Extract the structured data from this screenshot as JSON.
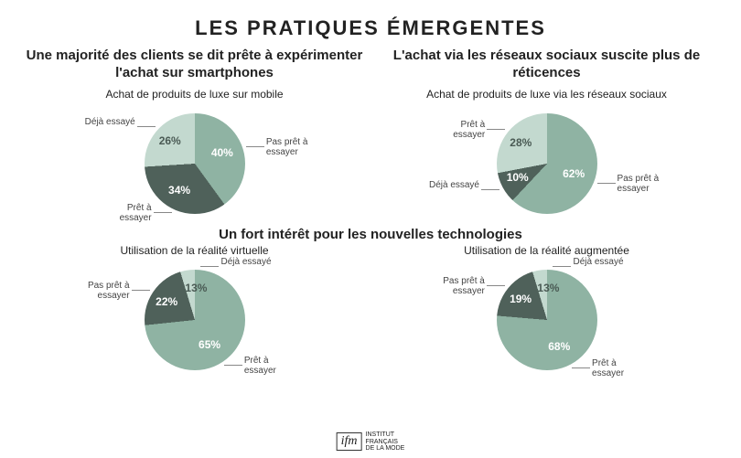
{
  "title": "LES PRATIQUES ÉMERGENTES",
  "section2_heading": "Un fort intérêt pour les nouvelles technologies",
  "logo": {
    "mark": "ifm",
    "line1": "INSTITUT",
    "line2": "FRANÇAIS",
    "line3": "DE LA MODE"
  },
  "colors": {
    "slice_large": "#8fb3a3",
    "slice_mid": "#4f615a",
    "slice_small": "#c3d9cf",
    "bg": "#ffffff",
    "text": "#222222"
  },
  "charts": {
    "mobile": {
      "heading": "Une majorité des clients se dit prête à expérimenter l'achat sur smartphones",
      "subtitle": "Achat de produits de luxe sur mobile",
      "type": "pie",
      "slices": [
        {
          "label": "Pas prêt à essayer",
          "value": 40,
          "color": "#8fb3a3"
        },
        {
          "label": "Prêt à essayer",
          "value": 34,
          "color": "#4f615a"
        },
        {
          "label": "Déjà essayé",
          "value": 26,
          "color": "#c3d9cf"
        }
      ]
    },
    "social": {
      "heading": "L'achat via les réseaux sociaux suscite plus de réticences",
      "subtitle": "Achat de produits de luxe via les réseaux sociaux",
      "type": "pie",
      "slices": [
        {
          "label": "Pas prêt à essayer",
          "value": 62,
          "color": "#8fb3a3"
        },
        {
          "label": "Déjà essayé",
          "value": 10,
          "color": "#4f615a"
        },
        {
          "label": "Prêt à essayer",
          "value": 28,
          "color": "#c3d9cf"
        }
      ]
    },
    "vr": {
      "subtitle": "Utilisation de la réalité virtuelle",
      "type": "pie",
      "slices": [
        {
          "label": "Prêt à essayer",
          "value": 65,
          "color": "#8fb3a3"
        },
        {
          "label": "Pas prêt à essayer",
          "value": 22,
          "color": "#4f615a"
        },
        {
          "label": "Déjà essayé",
          "value": 13,
          "color": "#c3d9cf"
        }
      ]
    },
    "ar": {
      "subtitle": "Utilisation de la réalité augmentée",
      "type": "pie",
      "slices": [
        {
          "label": "Prêt à essayer",
          "value": 68,
          "color": "#8fb3a3"
        },
        {
          "label": "Pas prêt à essayer",
          "value": 19,
          "color": "#4f615a"
        },
        {
          "label": "Déjà essayé",
          "value": 13,
          "color": "#c3d9cf"
        }
      ]
    }
  }
}
